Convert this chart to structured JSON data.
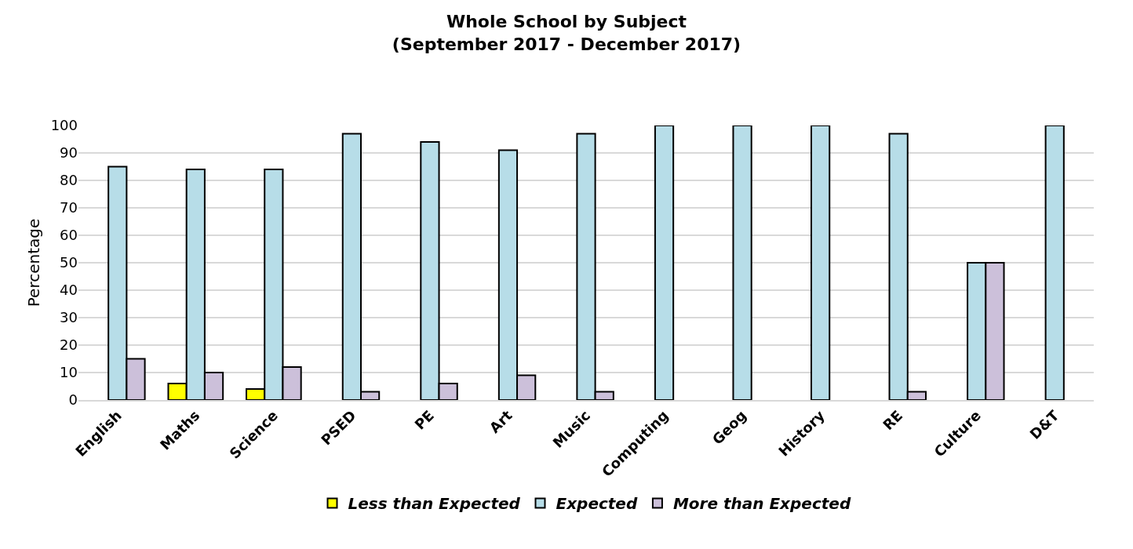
{
  "chart_data": {
    "type": "bar",
    "title": "Whole School by Subject\n(September 2017 - December 2017)",
    "ylabel": "Percentage",
    "categories": [
      "English",
      "Maths",
      "Science",
      "PSED",
      "PE",
      "Art",
      "Music",
      "Computing",
      "Geog",
      "History",
      "RE",
      "Culture",
      "D&T"
    ],
    "series": [
      {
        "name": "Less than Expected",
        "color": "#ffff00",
        "values": [
          null,
          6,
          4,
          null,
          null,
          null,
          null,
          null,
          null,
          null,
          null,
          null,
          null
        ]
      },
      {
        "name": "Expected",
        "color": "#b7dde8",
        "values": [
          85,
          84,
          84,
          97,
          94,
          91,
          97,
          100,
          100,
          100,
          97,
          50,
          100
        ]
      },
      {
        "name": "More than Expected",
        "color": "#ccc0da",
        "values": [
          15,
          10,
          12,
          3,
          6,
          9,
          3,
          null,
          null,
          null,
          3,
          50,
          null
        ]
      }
    ],
    "ylim": [
      0,
      100
    ],
    "yticks": [
      0,
      10,
      20,
      30,
      40,
      50,
      60,
      70,
      80,
      90,
      100
    ],
    "grid": "y",
    "legend": "bottom"
  }
}
